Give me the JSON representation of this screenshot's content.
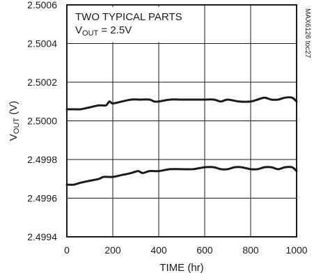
{
  "chart_data": {
    "type": "line",
    "title": "",
    "annotation_line1": "TWO TYPICAL PARTS",
    "annotation_line2": {
      "prefix": "V",
      "sub": "OUT",
      "suffix": " = 2.5V"
    },
    "side_note": "MAX6126 toc27",
    "xlabel": "TIME (hr)",
    "ylabel": {
      "prefix": "V",
      "sub": "OUT",
      "suffix": " (V)"
    },
    "xlim": [
      0,
      1000
    ],
    "ylim": [
      2.4994,
      2.5006
    ],
    "xticks": [
      0,
      200,
      400,
      600,
      800,
      1000
    ],
    "yticks": [
      "2.4994",
      "2.4996",
      "2.4998",
      "2.5000",
      "2.5002",
      "2.5004",
      "2.5006"
    ],
    "grid": true,
    "line_color": "#1a1a1a",
    "series": [
      {
        "x": [
          0,
          30,
          60,
          100,
          140,
          170,
          185,
          200,
          240,
          280,
          320,
          360,
          380,
          400,
          450,
          500,
          550,
          600,
          640,
          670,
          700,
          750,
          800,
          830,
          860,
          890,
          920,
          950,
          980,
          1000
        ],
        "y": [
          2.50006,
          2.50006,
          2.50006,
          2.50007,
          2.50008,
          2.50008,
          2.5001,
          2.50009,
          2.5001,
          2.50011,
          2.50011,
          2.50011,
          2.5001,
          2.5001,
          2.50011,
          2.50011,
          2.50011,
          2.50011,
          2.50011,
          2.5001,
          2.50011,
          2.5001,
          2.5001,
          2.50011,
          2.50012,
          2.50011,
          2.50011,
          2.50012,
          2.50012,
          2.5001
        ]
      },
      {
        "x": [
          0,
          30,
          60,
          100,
          140,
          160,
          200,
          240,
          280,
          310,
          330,
          360,
          400,
          450,
          500,
          550,
          600,
          640,
          670,
          700,
          730,
          760,
          800,
          830,
          860,
          890,
          920,
          950,
          980,
          1000
        ],
        "y": [
          2.49967,
          2.49967,
          2.49968,
          2.49969,
          2.4997,
          2.49971,
          2.49971,
          2.49972,
          2.49973,
          2.49974,
          2.49973,
          2.49974,
          2.49974,
          2.49975,
          2.49975,
          2.49975,
          2.49976,
          2.49976,
          2.49975,
          2.49975,
          2.49976,
          2.49976,
          2.49975,
          2.49975,
          2.49976,
          2.49976,
          2.49975,
          2.49976,
          2.49976,
          2.49974
        ]
      }
    ]
  }
}
